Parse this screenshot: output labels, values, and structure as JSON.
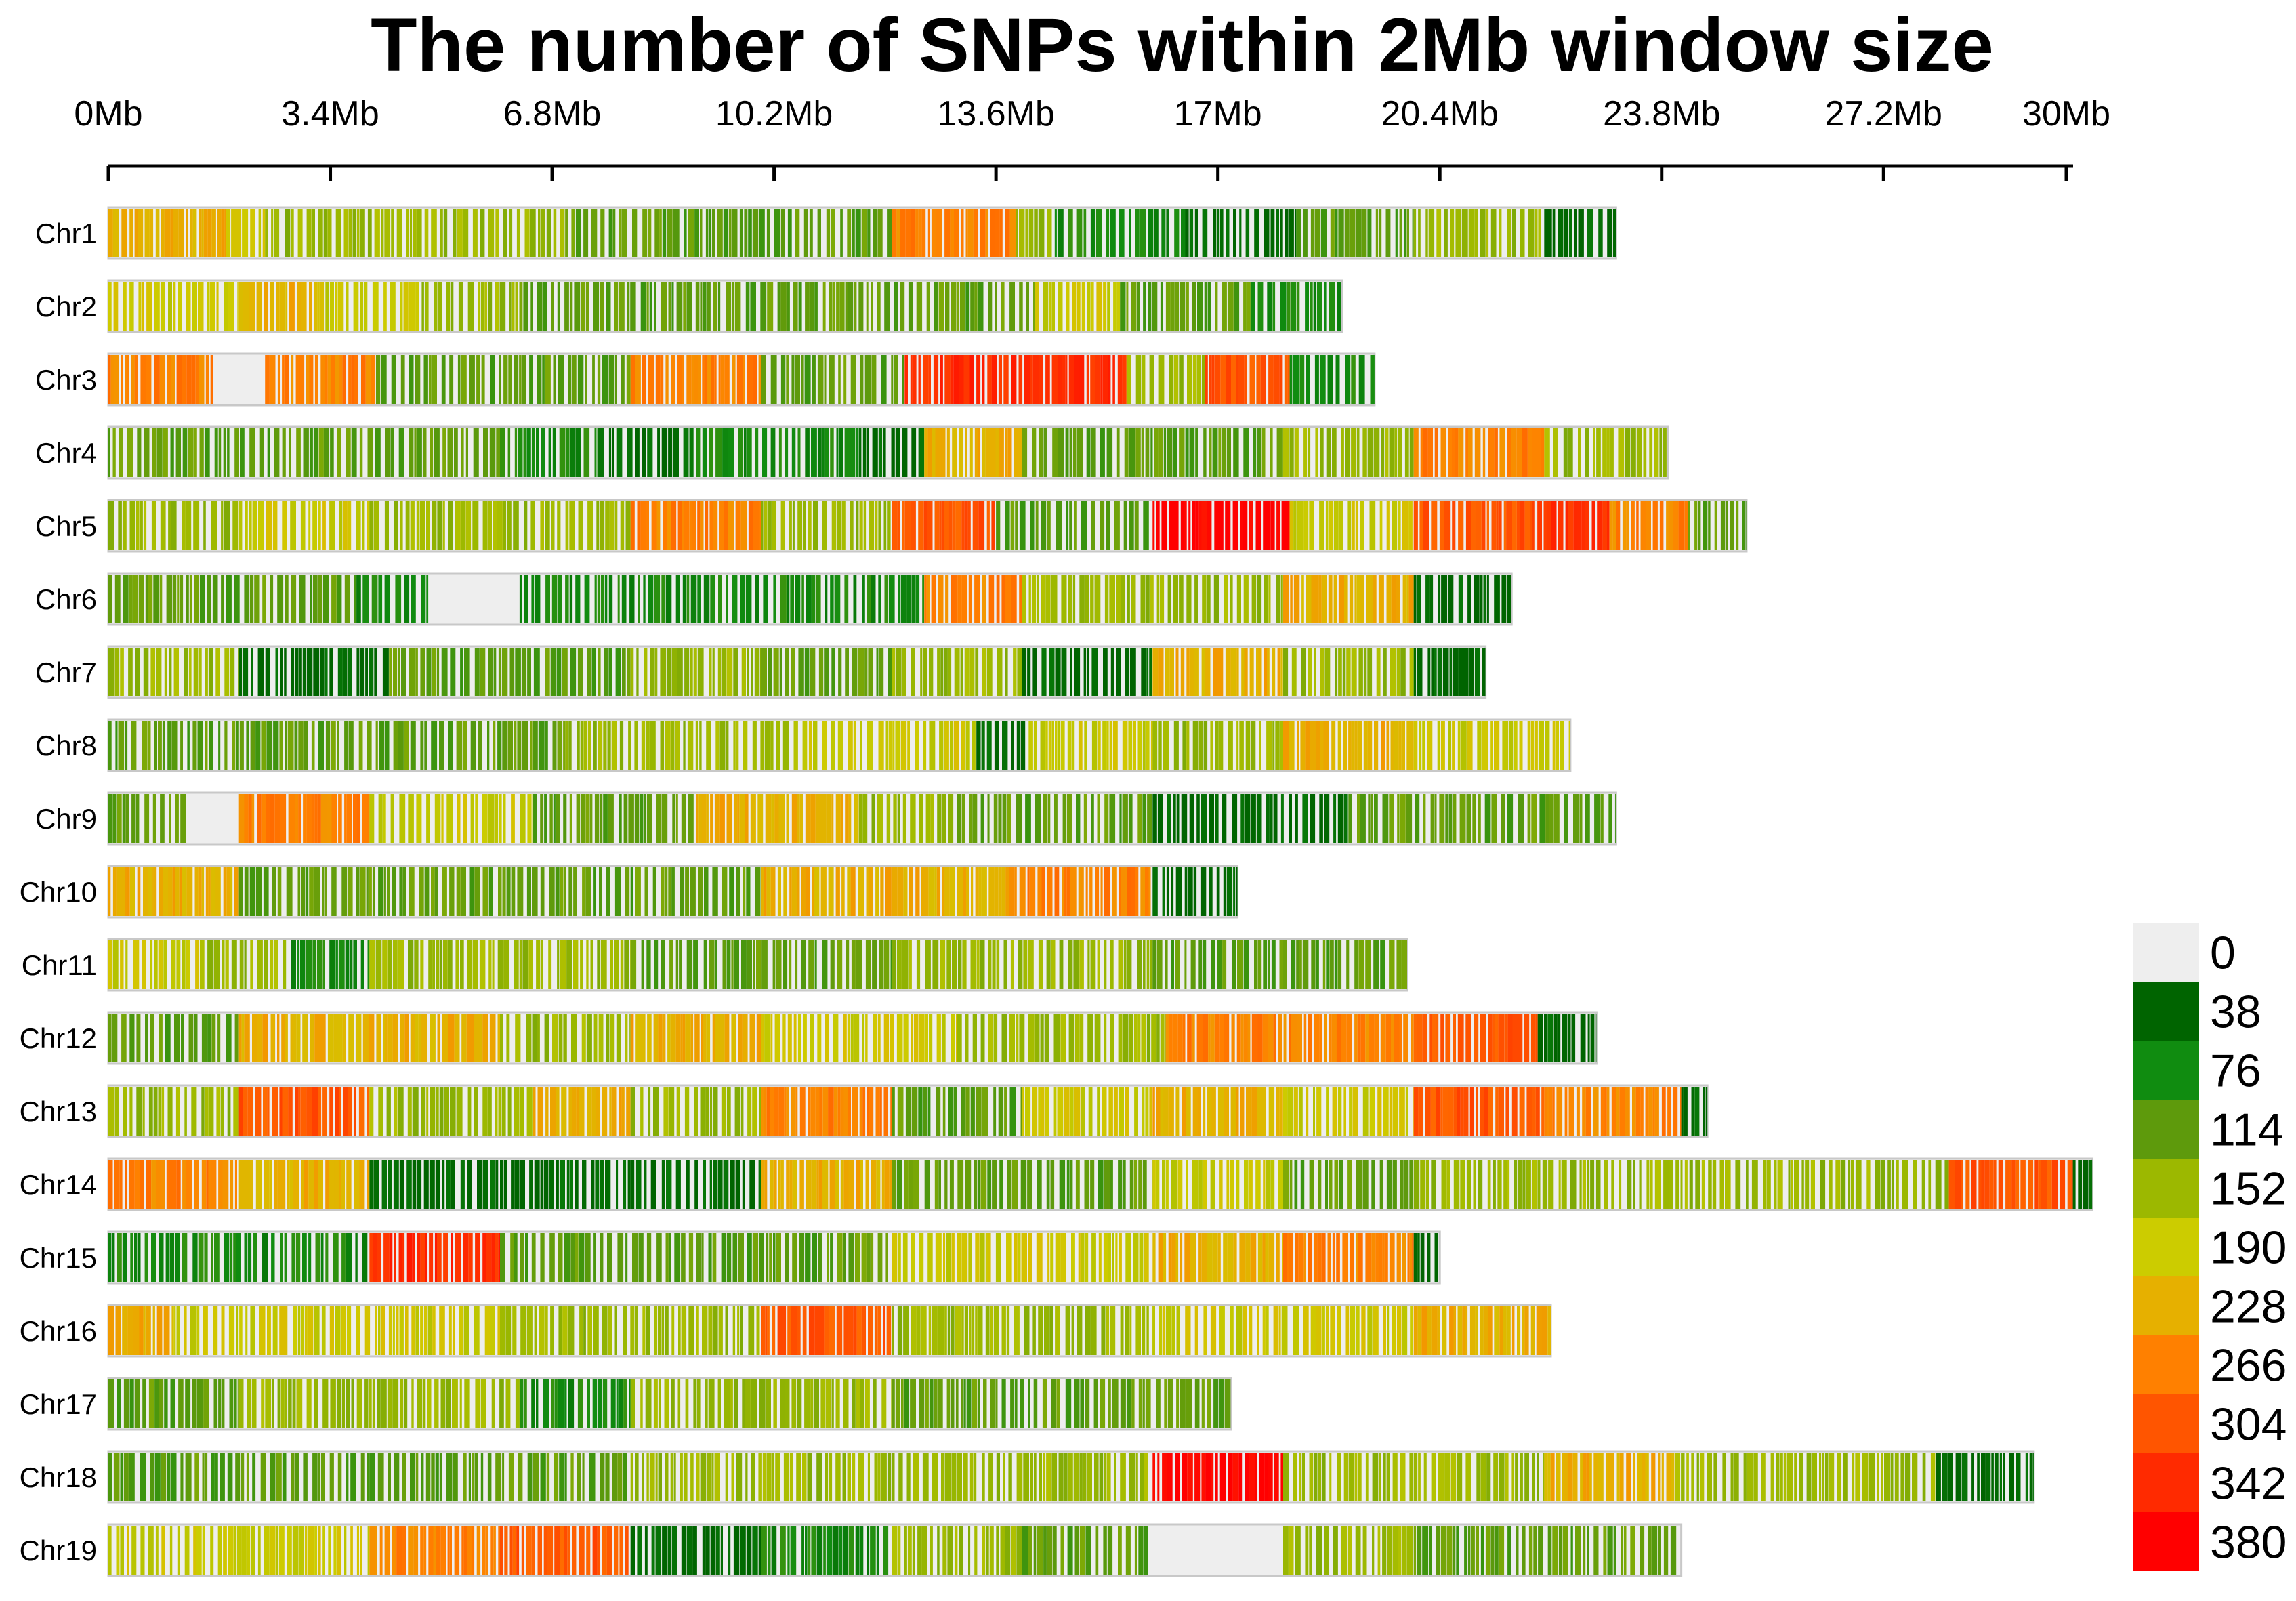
{
  "chart_data": {
    "type": "heatmap",
    "title": "The number of SNPs within 2Mb window size",
    "xlim_mb": [
      0,
      30
    ],
    "x_ticks": [
      "0Mb",
      "3.4Mb",
      "6.8Mb",
      "10.2Mb",
      "13.6Mb",
      "17Mb",
      "20.4Mb",
      "23.8Mb",
      "27.2Mb",
      "30Mb"
    ],
    "x_tick_values": [
      0,
      3.4,
      6.8,
      10.2,
      13.6,
      17,
      20.4,
      23.8,
      27.2,
      30
    ],
    "legend": {
      "position": "bottom-right",
      "labels": [
        "0",
        "38",
        "76",
        "114",
        "152",
        "190",
        "228",
        "266",
        "304",
        "342",
        "380"
      ],
      "colors": [
        "#eeeeee",
        "#006400",
        "#108c10",
        "#5e9a0c",
        "#9cb800",
        "#cccc00",
        "#e6b000",
        "#ff8000",
        "#ff5500",
        "#ff2a00",
        "#ff0000"
      ]
    },
    "chromosomes": [
      {
        "name": "Chr1",
        "length_mb": 23.1,
        "segments": [
          [
            0,
            1.8,
            228
          ],
          [
            1.8,
            2.4,
            190
          ],
          [
            2.4,
            7,
            152
          ],
          [
            7,
            12,
            114
          ],
          [
            12,
            13.9,
            266
          ],
          [
            13.9,
            14.5,
            152
          ],
          [
            14.5,
            16.5,
            76
          ],
          [
            16.5,
            18.2,
            38
          ],
          [
            18.2,
            20,
            114
          ],
          [
            20,
            22,
            152
          ],
          [
            22,
            23.1,
            38
          ]
        ]
      },
      {
        "name": "Chr2",
        "length_mb": 18.9,
        "segments": [
          [
            0,
            2,
            190
          ],
          [
            2,
            3.2,
            228
          ],
          [
            3.2,
            4.8,
            190
          ],
          [
            4.8,
            6.3,
            152
          ],
          [
            6.3,
            10.3,
            114
          ],
          [
            10.3,
            14.2,
            114
          ],
          [
            14.2,
            15.5,
            190
          ],
          [
            15.5,
            17.5,
            114
          ],
          [
            17.5,
            18.9,
            76
          ]
        ]
      },
      {
        "name": "Chr3",
        "length_mb": 19.4,
        "segments": [
          [
            0,
            1.6,
            266
          ],
          [
            1.6,
            2.4,
            0
          ],
          [
            2.4,
            4.1,
            266
          ],
          [
            4.1,
            8,
            114
          ],
          [
            8,
            10,
            266
          ],
          [
            10,
            12.2,
            114
          ],
          [
            12.2,
            15.6,
            342
          ],
          [
            15.6,
            16.8,
            152
          ],
          [
            16.8,
            18.1,
            304
          ],
          [
            18.1,
            19.4,
            76
          ]
        ]
      },
      {
        "name": "Chr4",
        "length_mb": 23.9,
        "segments": [
          [
            0,
            3.3,
            114
          ],
          [
            3.3,
            6,
            114
          ],
          [
            6,
            7.5,
            76
          ],
          [
            7.5,
            9,
            38
          ],
          [
            9,
            11.5,
            76
          ],
          [
            11.5,
            12.5,
            38
          ],
          [
            12.5,
            14,
            228
          ],
          [
            14,
            18,
            114
          ],
          [
            18,
            20,
            152
          ],
          [
            20,
            22,
            266
          ],
          [
            22,
            23.9,
            152
          ]
        ]
      },
      {
        "name": "Chr5",
        "length_mb": 25.1,
        "segments": [
          [
            0,
            2,
            152
          ],
          [
            2,
            4,
            190
          ],
          [
            4,
            8,
            152
          ],
          [
            8,
            10,
            266
          ],
          [
            10,
            12,
            152
          ],
          [
            12,
            13.6,
            304
          ],
          [
            13.6,
            16,
            114
          ],
          [
            16,
            18.1,
            380
          ],
          [
            18.1,
            20,
            190
          ],
          [
            20,
            21.9,
            304
          ],
          [
            21.9,
            23,
            342
          ],
          [
            23,
            24.2,
            266
          ],
          [
            24.2,
            25.1,
            114
          ]
        ]
      },
      {
        "name": "Chr6",
        "length_mb": 21.5,
        "segments": [
          [
            0,
            3.8,
            114
          ],
          [
            3.8,
            4.9,
            76
          ],
          [
            4.9,
            6.3,
            0
          ],
          [
            6.3,
            12.5,
            76
          ],
          [
            12.5,
            14,
            266
          ],
          [
            14,
            18,
            152
          ],
          [
            18,
            20,
            228
          ],
          [
            20,
            21.5,
            38
          ]
        ]
      },
      {
        "name": "Chr7",
        "length_mb": 21.1,
        "segments": [
          [
            0,
            2,
            152
          ],
          [
            2,
            4.3,
            38
          ],
          [
            4.3,
            8,
            114
          ],
          [
            8,
            10,
            152
          ],
          [
            10,
            12,
            114
          ],
          [
            12,
            14,
            152
          ],
          [
            14,
            16,
            38
          ],
          [
            16,
            18,
            228
          ],
          [
            18,
            20,
            152
          ],
          [
            20,
            21.1,
            38
          ]
        ]
      },
      {
        "name": "Chr8",
        "length_mb": 22.4,
        "segments": [
          [
            0,
            3.5,
            114
          ],
          [
            3.5,
            7,
            114
          ],
          [
            7,
            10.5,
            152
          ],
          [
            10.5,
            13.3,
            190
          ],
          [
            13.3,
            14.1,
            38
          ],
          [
            14.1,
            16,
            190
          ],
          [
            16,
            18,
            152
          ],
          [
            18,
            20,
            228
          ],
          [
            20,
            22.4,
            190
          ]
        ]
      },
      {
        "name": "Chr9",
        "length_mb": 23.1,
        "segments": [
          [
            0,
            1.2,
            114
          ],
          [
            1.2,
            2,
            0
          ],
          [
            2,
            4,
            266
          ],
          [
            4,
            6.5,
            190
          ],
          [
            6.5,
            9,
            114
          ],
          [
            9,
            11.5,
            228
          ],
          [
            11.5,
            13,
            152
          ],
          [
            13,
            16,
            114
          ],
          [
            16,
            19,
            38
          ],
          [
            19,
            23.1,
            114
          ]
        ]
      },
      {
        "name": "Chr10",
        "length_mb": 17.3,
        "segments": [
          [
            0,
            2,
            228
          ],
          [
            2,
            5,
            114
          ],
          [
            5,
            8,
            114
          ],
          [
            8,
            10,
            114
          ],
          [
            10,
            13.8,
            228
          ],
          [
            13.8,
            16,
            266
          ],
          [
            16,
            17.3,
            38
          ]
        ]
      },
      {
        "name": "Chr11",
        "length_mb": 19.9,
        "segments": [
          [
            0,
            1.4,
            190
          ],
          [
            1.4,
            2.8,
            152
          ],
          [
            2.8,
            4,
            76
          ],
          [
            4,
            8,
            152
          ],
          [
            8,
            12,
            114
          ],
          [
            12,
            16,
            152
          ],
          [
            16,
            18,
            114
          ],
          [
            18,
            19.9,
            114
          ]
        ]
      },
      {
        "name": "Chr12",
        "length_mb": 22.8,
        "segments": [
          [
            0,
            2,
            114
          ],
          [
            2,
            6,
            228
          ],
          [
            6,
            8,
            152
          ],
          [
            8,
            10,
            228
          ],
          [
            10,
            13,
            190
          ],
          [
            13,
            16.2,
            152
          ],
          [
            16.2,
            20,
            266
          ],
          [
            20,
            21.9,
            304
          ],
          [
            21.9,
            22.8,
            38
          ]
        ]
      },
      {
        "name": "Chr13",
        "length_mb": 24.5,
        "segments": [
          [
            0,
            2,
            152
          ],
          [
            2,
            4,
            304
          ],
          [
            4,
            6.5,
            152
          ],
          [
            6.5,
            8,
            228
          ],
          [
            8,
            10,
            152
          ],
          [
            10,
            12,
            266
          ],
          [
            12,
            14,
            114
          ],
          [
            14,
            16,
            190
          ],
          [
            16,
            18,
            228
          ],
          [
            18,
            20,
            190
          ],
          [
            20,
            22,
            304
          ],
          [
            22,
            24.1,
            266
          ],
          [
            24.1,
            24.5,
            38
          ]
        ]
      },
      {
        "name": "Chr14",
        "length_mb": 30.4,
        "segments": [
          [
            0,
            2,
            266
          ],
          [
            2,
            4,
            228
          ],
          [
            4,
            8,
            38
          ],
          [
            8,
            10,
            38
          ],
          [
            10,
            12,
            228
          ],
          [
            12,
            16,
            114
          ],
          [
            16,
            18,
            190
          ],
          [
            18,
            20,
            114
          ],
          [
            20,
            26,
            152
          ],
          [
            26,
            28.2,
            152
          ],
          [
            28.2,
            30.1,
            304
          ],
          [
            30.1,
            30.4,
            38
          ]
        ]
      },
      {
        "name": "Chr15",
        "length_mb": 20.4,
        "segments": [
          [
            0,
            4,
            76
          ],
          [
            4,
            6,
            342
          ],
          [
            6,
            9,
            114
          ],
          [
            9,
            12,
            114
          ],
          [
            12,
            16,
            190
          ],
          [
            16,
            18,
            228
          ],
          [
            18,
            20,
            266
          ],
          [
            20,
            20.4,
            38
          ]
        ]
      },
      {
        "name": "Chr16",
        "length_mb": 22.1,
        "segments": [
          [
            0,
            1,
            228
          ],
          [
            1,
            6,
            190
          ],
          [
            6,
            10,
            152
          ],
          [
            10,
            12,
            304
          ],
          [
            12,
            16,
            152
          ],
          [
            16,
            20,
            190
          ],
          [
            20,
            22.1,
            228
          ]
        ]
      },
      {
        "name": "Chr17",
        "length_mb": 17.2,
        "segments": [
          [
            0,
            2,
            114
          ],
          [
            2,
            6.3,
            152
          ],
          [
            6.3,
            8,
            76
          ],
          [
            8,
            12,
            152
          ],
          [
            12,
            15,
            114
          ],
          [
            15,
            17.2,
            114
          ]
        ]
      },
      {
        "name": "Chr18",
        "length_mb": 29.5,
        "segments": [
          [
            0,
            4,
            114
          ],
          [
            4,
            8,
            114
          ],
          [
            8,
            12,
            152
          ],
          [
            12,
            16,
            152
          ],
          [
            16,
            18,
            380
          ],
          [
            18,
            20,
            152
          ],
          [
            20,
            22,
            152
          ],
          [
            22,
            24,
            228
          ],
          [
            24,
            28,
            152
          ],
          [
            28,
            29.5,
            38
          ]
        ]
      },
      {
        "name": "Chr19",
        "length_mb": 24.1,
        "segments": [
          [
            0,
            4,
            190
          ],
          [
            4,
            6,
            266
          ],
          [
            6,
            8,
            304
          ],
          [
            8,
            10,
            38
          ],
          [
            10,
            12,
            76
          ],
          [
            12,
            14,
            152
          ],
          [
            14,
            16,
            114
          ],
          [
            16,
            18,
            0
          ],
          [
            18,
            20,
            152
          ],
          [
            20,
            24.1,
            114
          ]
        ]
      }
    ]
  }
}
